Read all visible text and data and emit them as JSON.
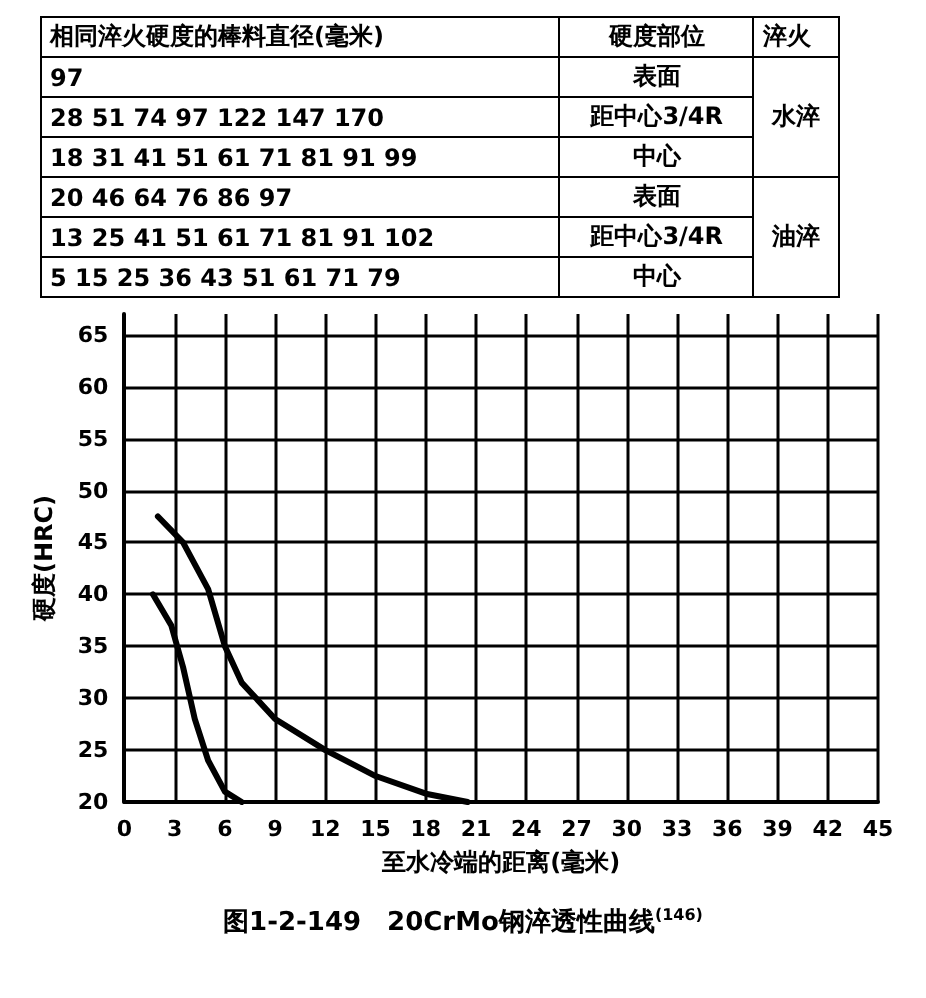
{
  "chart_data": {
    "type": "line",
    "title": "图1-2-149　20CrMo钢淬透性曲线$^{(146)}$",
    "xlabel": "至水冷端的距离(毫米)",
    "ylabel": "硬度(HRC)",
    "annotations": [
      "相同淬火硬度的棒料直径(毫米)",
      "硬度部位",
      "淬火",
      "97",
      "表面",
      "28 51 74 97 122 147 170",
      "距中心3/4R",
      "18 31 41 51 61 71 81 91 99",
      "中心",
      "水淬",
      "20 46 64 76 86 97",
      "表面",
      "13 25 41 51 61 71 81 91 102",
      "距中心3/4R",
      "5 15 25 36 43 51 61 71 79",
      "中心",
      "油淬"
    ],
    "series": [
      {
        "color": "#000000",
        "x": [
          2,
          3.5,
          5,
          6,
          7,
          9,
          12,
          15,
          18,
          20.5
        ],
        "values": [
          47.5,
          45,
          40.5,
          35,
          31.5,
          28,
          25,
          22.5,
          20.8,
          20
        ]
      },
      {
        "color": "#000000",
        "x": [
          1.7,
          2.8,
          3.5,
          4.2,
          5,
          6,
          7
        ],
        "values": [
          40,
          37,
          33,
          28,
          24,
          21,
          20
        ]
      }
    ],
    "xlim": [
      0,
      45
    ],
    "xticks": [
      0,
      3,
      6,
      9,
      12,
      15,
      18,
      21,
      24,
      27,
      30,
      33,
      36,
      39,
      42,
      45
    ],
    "ylim": [
      20,
      67
    ],
    "yticks": [
      20,
      25,
      30,
      35,
      40,
      45,
      50,
      55,
      60,
      65
    ],
    "grid": true,
    "marker": "none",
    "line_style": "solid"
  }
}
